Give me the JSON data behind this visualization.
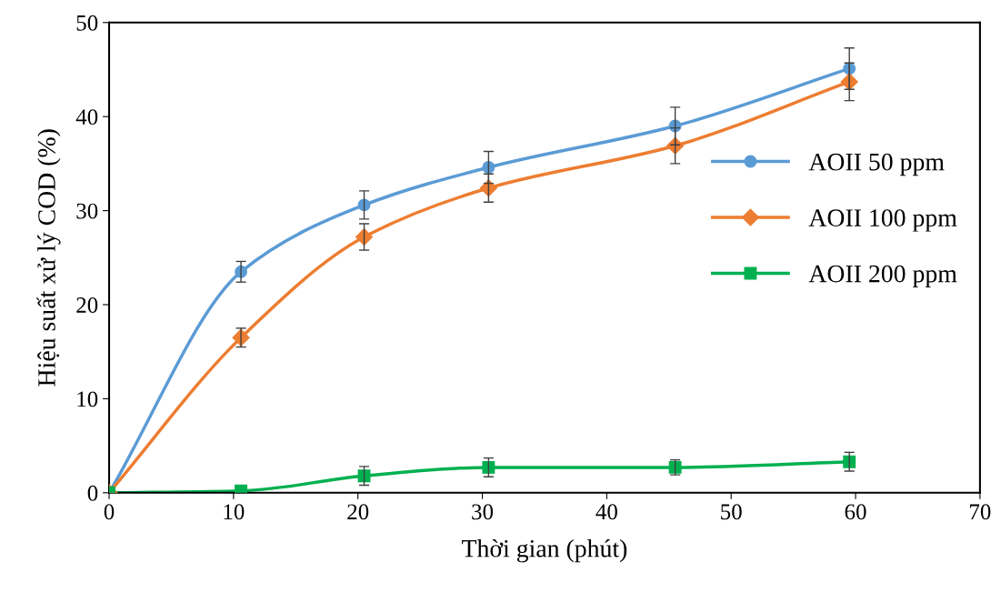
{
  "chart_data": {
    "type": "line",
    "xlabel": "Thời gian (phút)",
    "ylabel": "Hiệu suất xử lý COD (%)",
    "xlim": [
      0,
      70
    ],
    "xticks": [
      0,
      10,
      20,
      30,
      40,
      50,
      60,
      70
    ],
    "ylim": [
      0,
      50
    ],
    "yticks": [
      0,
      10,
      20,
      30,
      40,
      50
    ],
    "x": [
      0,
      10.6,
      20.5,
      30.5,
      45.5,
      59.5
    ],
    "grid": false,
    "legend": "right",
    "line_style": "solid",
    "series": [
      {
        "name": "AOII 50 ppm",
        "color": "#5b9bd5",
        "marker": "circle",
        "values": [
          0,
          23.5,
          30.6,
          34.6,
          39.0,
          45.1
        ],
        "errors": [
          null,
          1.1,
          1.5,
          1.7,
          2.0,
          2.2
        ]
      },
      {
        "name": "AOII 100 ppm",
        "color": "#ed7d31",
        "marker": "diamond",
        "values": [
          0,
          16.5,
          27.2,
          32.4,
          36.9,
          43.7
        ],
        "errors": [
          null,
          1.0,
          1.4,
          1.5,
          1.9,
          2.0
        ]
      },
      {
        "name": "AOII 200 ppm",
        "color": "#00b050",
        "marker": "square",
        "values": [
          0,
          0.2,
          1.8,
          2.7,
          2.7,
          3.3
        ],
        "errors": [
          null,
          null,
          1.0,
          1.0,
          0.8,
          1.0
        ]
      }
    ]
  }
}
